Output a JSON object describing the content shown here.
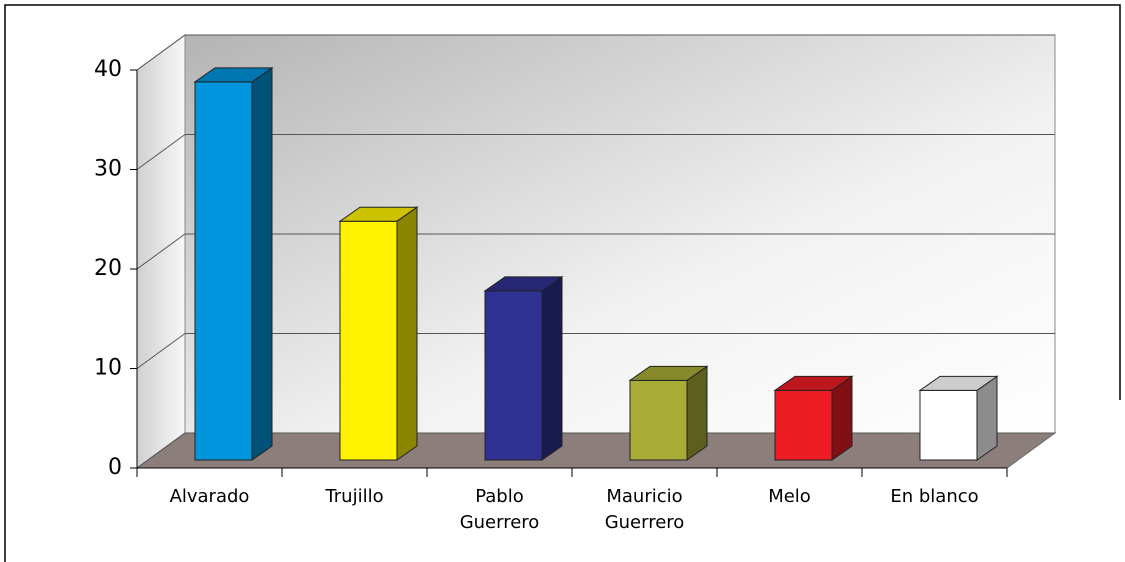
{
  "chart_data": {
    "type": "bar3d",
    "categories": [
      "Alvarado",
      "Trujillo",
      "Pablo Guerrero",
      "Mauricio Guerrero",
      "Melo",
      "En blanco"
    ],
    "values": [
      38,
      24,
      17,
      8,
      7,
      7
    ],
    "colors": [
      "#0095dc",
      "#fff200",
      "#2e3192",
      "#a8ac36",
      "#ed1c24",
      "#ffffff"
    ],
    "ylim": [
      0,
      40
    ],
    "yticks": [
      0,
      10,
      20,
      30,
      40
    ],
    "grid": true
  }
}
